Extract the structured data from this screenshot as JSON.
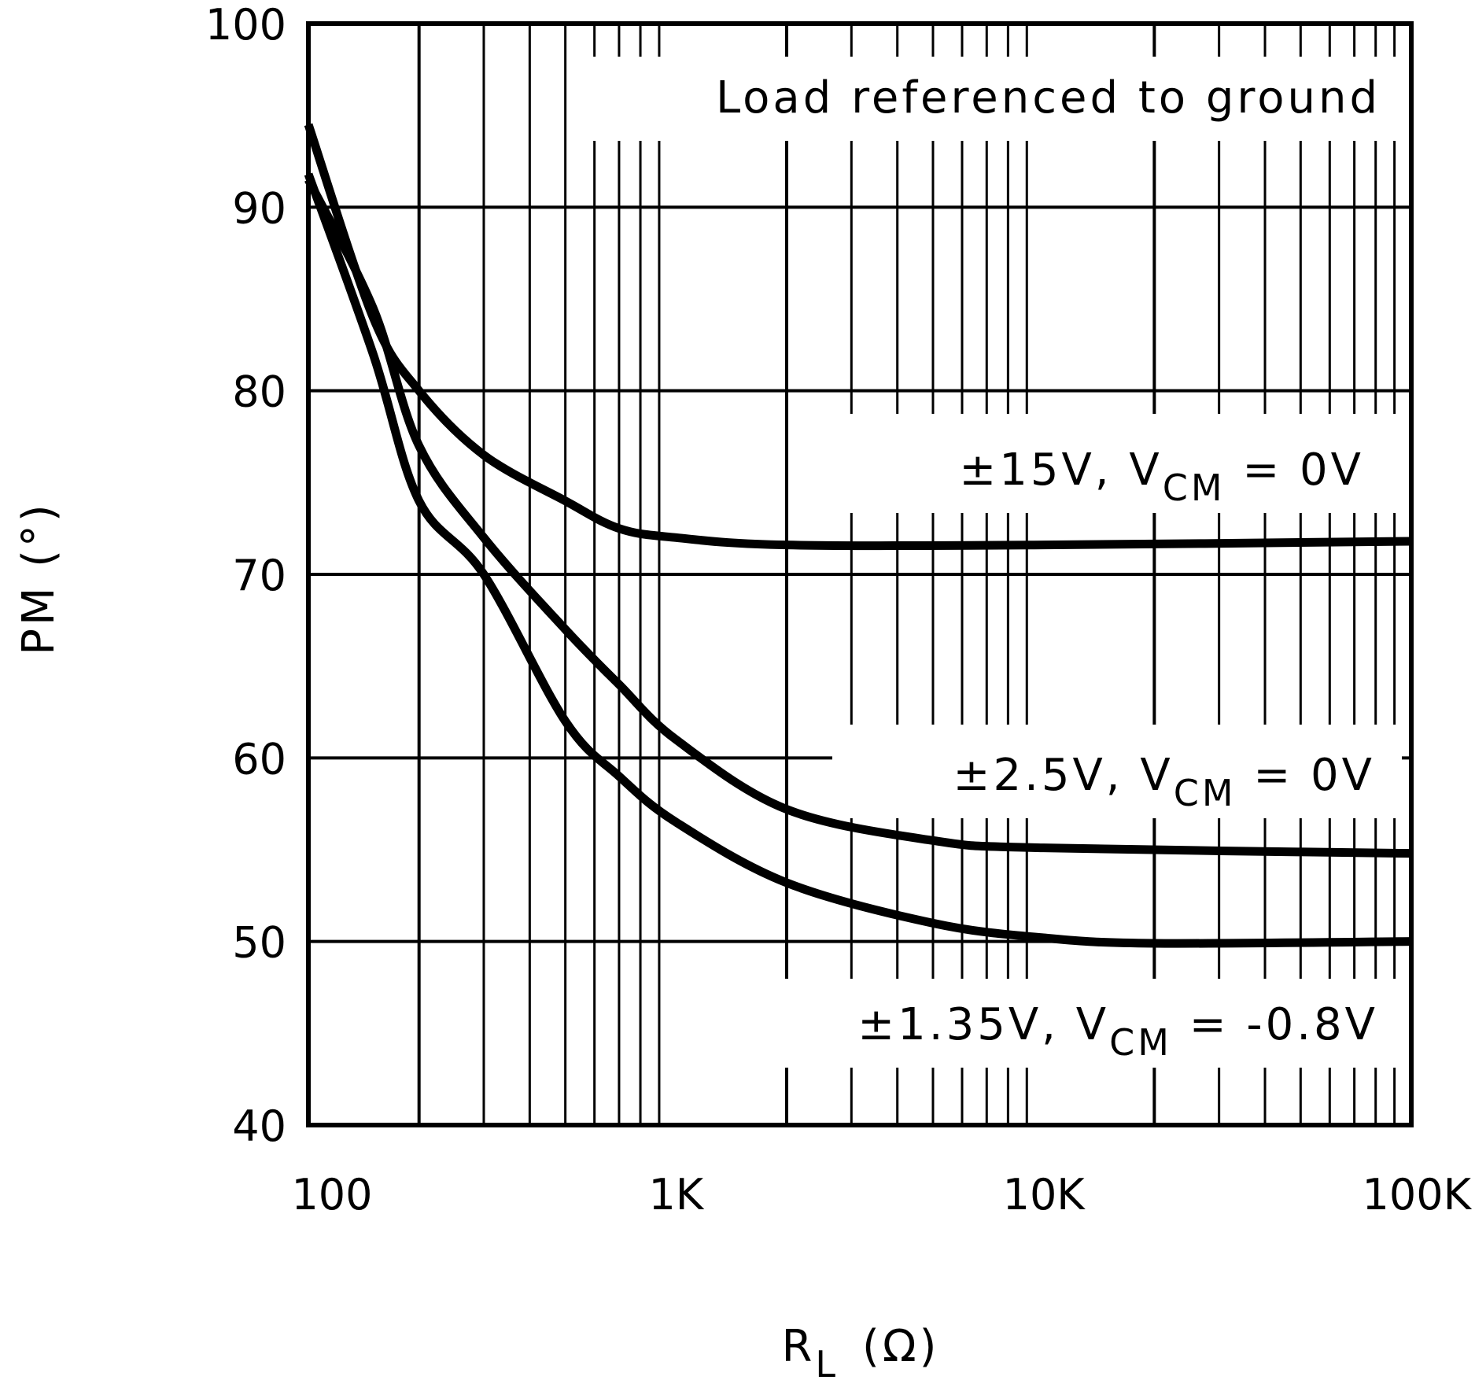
{
  "chart_data": {
    "type": "line",
    "title": "",
    "xlabel": "R",
    "xlabel_sub": "L",
    "xlabel_unit": "(Ω)",
    "ylabel": "PM (°)",
    "xscale": "log",
    "xlim": [
      100,
      100000
    ],
    "ylim": [
      40,
      100
    ],
    "grid": true,
    "x_ticks": [
      {
        "value": 100,
        "label": "100"
      },
      {
        "value": 1000,
        "label": "1K"
      },
      {
        "value": 10000,
        "label": "10K"
      },
      {
        "value": 100000,
        "label": "100K"
      }
    ],
    "y_ticks": [
      {
        "value": 40,
        "label": "40"
      },
      {
        "value": 50,
        "label": "50"
      },
      {
        "value": 60,
        "label": "60"
      },
      {
        "value": 70,
        "label": "70"
      },
      {
        "value": 80,
        "label": "80"
      },
      {
        "value": 90,
        "label": "90"
      },
      {
        "value": 100,
        "label": "100"
      }
    ],
    "annotation": "Load referenced to ground",
    "line_color": "#000000",
    "series": [
      {
        "name": "±15V, VCM = 0V",
        "label_main": "±15V, V",
        "label_sub": "CM",
        "label_tail": " = 0V",
        "x": [
          100,
          150,
          200,
          300,
          500,
          700,
          1000,
          2000,
          10000,
          100000
        ],
        "y": [
          94.5,
          84,
          80,
          76.5,
          74,
          72.5,
          72,
          71.6,
          71.6,
          71.8
        ]
      },
      {
        "name": "±2.5V, VCM = 0V",
        "label_main": "±2.5V, V",
        "label_sub": "CM",
        "label_tail": " = 0V",
        "x": [
          100,
          150,
          200,
          300,
          500,
          700,
          1000,
          2000,
          5000,
          10000,
          100000
        ],
        "y": [
          91.5,
          84.5,
          77,
          72,
          67,
          64,
          61,
          57.2,
          55.5,
          55.1,
          54.8
        ]
      },
      {
        "name": "±1.35V, VCM = -0.8V",
        "label_main": "±1.35V, V",
        "label_sub": "CM",
        "label_tail": " = -0.8V",
        "x": [
          100,
          150,
          200,
          300,
          500,
          700,
          1000,
          2000,
          5000,
          10000,
          20000,
          100000
        ],
        "y": [
          91.8,
          82,
          74,
          70,
          62,
          59,
          56.5,
          53.2,
          51,
          50.2,
          49.9,
          50
        ]
      }
    ]
  }
}
